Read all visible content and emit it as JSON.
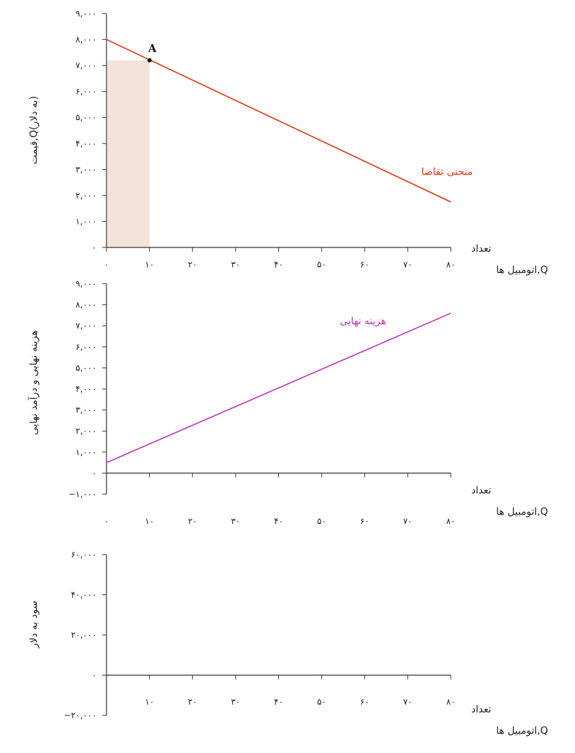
{
  "colors": {
    "axis": "#333333",
    "demand": "#dd3311",
    "marginal_cost": "#bb33bb",
    "shade": "#f3e3d8"
  },
  "chart_data": [
    {
      "type": "line",
      "ylabel": "قیمت,Q(به دلار)",
      "xlabel_line1": "تعداد",
      "xlabel_line2": "اتومبیل ها,Q",
      "xlim": [
        0,
        80
      ],
      "ylim": [
        0,
        9000
      ],
      "x_ticks": [
        0,
        10,
        20,
        30,
        40,
        50,
        60,
        70,
        80
      ],
      "x_tick_labels": [
        "۰",
        "۱۰",
        "۲۰",
        "۳۰",
        "۴۰",
        "۵۰",
        "۶۰",
        "۷۰",
        "۸۰"
      ],
      "y_ticks": [
        0,
        1000,
        2000,
        3000,
        4000,
        5000,
        6000,
        7000,
        8000,
        9000
      ],
      "y_tick_labels": [
        "۰",
        "۱,۰۰۰",
        "۲,۰۰۰",
        "۳,۰۰۰",
        "۴,۰۰۰",
        "۵,۰۰۰",
        "۶,۰۰۰",
        "۷,۰۰۰",
        "۸,۰۰۰",
        "۹,۰۰۰"
      ],
      "series": [
        {
          "name": "منحنی تقاضا",
          "x": [
            0,
            80
          ],
          "y": [
            8000,
            1750
          ]
        }
      ],
      "shaded_area": {
        "x": [
          0,
          10
        ],
        "y": [
          0,
          7200
        ]
      },
      "points": [
        {
          "label": "A",
          "x": 10,
          "y": 7200
        }
      ]
    },
    {
      "type": "line",
      "ylabel": "هزینه نهایی و درآمد نهایی",
      "xlabel_line1": "تعداد",
      "xlabel_line2": "اتومبیل ها,Q",
      "xlim": [
        0,
        80
      ],
      "ylim": [
        -1000,
        9000
      ],
      "x_ticks": [
        0,
        10,
        20,
        30,
        40,
        50,
        60,
        70,
        80
      ],
      "x_tick_labels": [
        "۰",
        "۱۰",
        "۲۰",
        "۳۰",
        "۴۰",
        "۵۰",
        "۶۰",
        "۷۰",
        "۸۰"
      ],
      "y_ticks": [
        -1000,
        0,
        1000,
        2000,
        3000,
        4000,
        5000,
        6000,
        7000,
        8000,
        9000
      ],
      "y_tick_labels": [
        "−۱,۰۰۰",
        "۰",
        "۱,۰۰۰",
        "۲,۰۰۰",
        "۳,۰۰۰",
        "۴,۰۰۰",
        "۵,۰۰۰",
        "۶,۰۰۰",
        "۷,۰۰۰",
        "۸,۰۰۰",
        "۹,۰۰۰"
      ],
      "series": [
        {
          "name": "هزینه نهایی",
          "x": [
            0,
            80
          ],
          "y": [
            500,
            7600
          ]
        }
      ]
    },
    {
      "type": "line",
      "ylabel": "سود به دلار",
      "xlabel_line1": "تعداد",
      "xlabel_line2": "اتومبیل ها,Q",
      "xlim": [
        0,
        80
      ],
      "ylim": [
        -20000,
        60000
      ],
      "x_ticks": [
        10,
        20,
        30,
        40,
        50,
        60,
        70,
        80
      ],
      "x_tick_labels": [
        "۱۰",
        "۲۰",
        "۳۰",
        "۴۰",
        "۵۰",
        "۶۰",
        "۷۰",
        "۸۰"
      ],
      "y_ticks": [
        -20000,
        0,
        20000,
        40000,
        60000
      ],
      "y_tick_labels": [
        "−۲۰,۰۰۰",
        "۰",
        "۲۰,۰۰۰",
        "۴۰,۰۰۰",
        "۶۰,۰۰۰"
      ],
      "series": []
    }
  ]
}
